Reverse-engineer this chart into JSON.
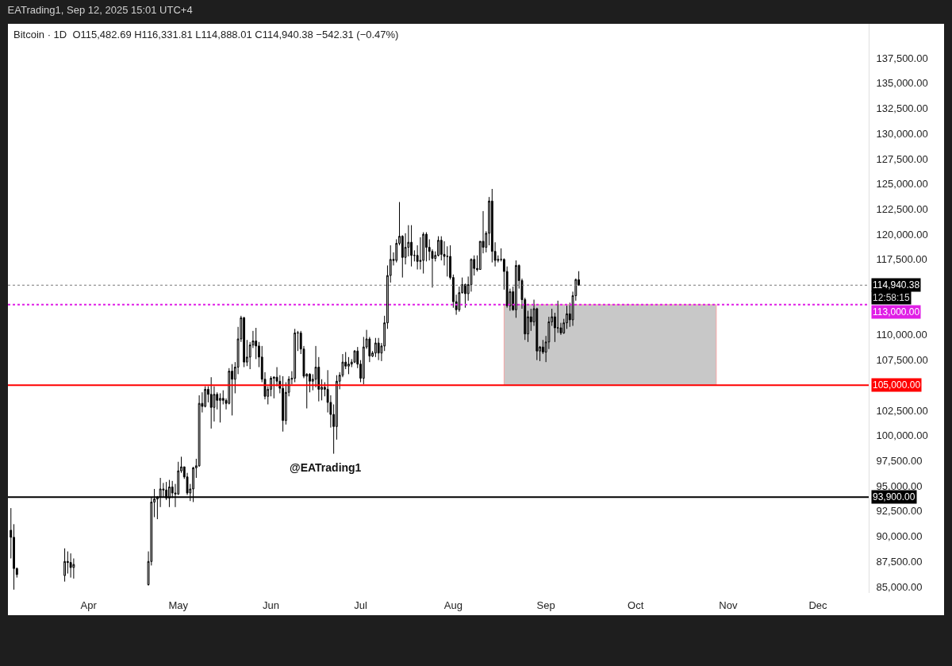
{
  "chart_data": {
    "type": "candlestick",
    "title": "EATrading1, Sep 12, 2025 15:01 UTC+4",
    "subtitle": "Bitcoin · 1D  O115,482.69 H116,331.81 L114,888.01 C114,940.38 −542.31 (−0.47%)",
    "x": [
      "2025-03-06",
      "2025-03-07",
      "2025-03-08",
      "2025-03-24",
      "2025-03-25",
      "2025-03-26",
      "2025-03-27",
      "2025-04-21",
      "2025-04-22",
      "2025-04-23",
      "2025-04-24",
      "2025-04-25",
      "2025-04-26",
      "2025-04-27",
      "2025-04-28",
      "2025-04-29",
      "2025-04-30",
      "2025-05-01",
      "2025-05-02",
      "2025-05-03",
      "2025-05-04",
      "2025-05-05",
      "2025-05-06",
      "2025-05-07",
      "2025-05-08",
      "2025-05-09",
      "2025-05-10",
      "2025-05-11",
      "2025-05-12",
      "2025-05-13",
      "2025-05-14",
      "2025-05-15",
      "2025-05-16",
      "2025-05-17",
      "2025-05-18",
      "2025-05-19",
      "2025-05-20",
      "2025-05-21",
      "2025-05-22",
      "2025-05-23",
      "2025-05-24",
      "2025-05-25",
      "2025-05-26",
      "2025-05-27",
      "2025-05-28",
      "2025-05-29",
      "2025-05-30",
      "2025-05-31",
      "2025-06-01",
      "2025-06-02",
      "2025-06-03",
      "2025-06-04",
      "2025-06-05",
      "2025-06-06",
      "2025-06-07",
      "2025-06-08",
      "2025-06-09",
      "2025-06-10",
      "2025-06-11",
      "2025-06-12",
      "2025-06-13",
      "2025-06-14",
      "2025-06-15",
      "2025-06-16",
      "2025-06-17",
      "2025-06-18",
      "2025-06-19",
      "2025-06-20",
      "2025-06-21",
      "2025-06-22",
      "2025-06-23",
      "2025-06-24",
      "2025-06-25",
      "2025-06-26",
      "2025-06-27",
      "2025-06-28",
      "2025-06-29",
      "2025-06-30",
      "2025-07-01",
      "2025-07-02",
      "2025-07-03",
      "2025-07-04",
      "2025-07-05",
      "2025-07-06",
      "2025-07-07",
      "2025-07-08",
      "2025-07-09",
      "2025-07-10",
      "2025-07-11",
      "2025-07-12",
      "2025-07-13",
      "2025-07-14",
      "2025-07-15",
      "2025-07-16",
      "2025-07-17",
      "2025-07-18",
      "2025-07-19",
      "2025-07-20",
      "2025-07-21",
      "2025-07-22",
      "2025-07-23",
      "2025-07-24",
      "2025-07-25",
      "2025-07-26",
      "2025-07-27",
      "2025-07-28",
      "2025-07-29",
      "2025-07-30",
      "2025-07-31",
      "2025-08-01",
      "2025-08-02",
      "2025-08-03",
      "2025-08-04",
      "2025-08-05",
      "2025-08-06",
      "2025-08-07",
      "2025-08-08",
      "2025-08-09",
      "2025-08-10",
      "2025-08-11",
      "2025-08-12",
      "2025-08-13",
      "2025-08-14",
      "2025-08-15",
      "2025-08-16",
      "2025-08-17",
      "2025-08-18",
      "2025-08-19",
      "2025-08-20",
      "2025-08-21",
      "2025-08-22",
      "2025-08-23",
      "2025-08-24",
      "2025-08-25",
      "2025-08-26",
      "2025-08-27",
      "2025-08-28",
      "2025-08-29",
      "2025-08-30",
      "2025-08-31",
      "2025-09-01",
      "2025-09-02",
      "2025-09-03",
      "2025-09-04",
      "2025-09-05",
      "2025-09-06",
      "2025-09-07",
      "2025-09-08",
      "2025-09-09",
      "2025-09-10",
      "2025-09-11",
      "2025-09-12"
    ],
    "ohlc": [
      [
        90600,
        92800,
        87800,
        89900
      ],
      [
        89900,
        91200,
        84700,
        86800
      ],
      [
        86800,
        86900,
        85900,
        86200
      ],
      [
        86100,
        88800,
        85500,
        87500
      ],
      [
        87500,
        88500,
        86300,
        87400
      ],
      [
        87400,
        88300,
        85900,
        86900
      ],
      [
        86900,
        87800,
        85800,
        87200
      ],
      [
        85200,
        88500,
        85100,
        87500
      ],
      [
        87500,
        93900,
        87100,
        93400
      ],
      [
        93400,
        94700,
        91900,
        93700
      ],
      [
        93700,
        94000,
        91700,
        93900
      ],
      [
        93900,
        95800,
        92900,
        94700
      ],
      [
        94700,
        95300,
        93900,
        94600
      ],
      [
        94600,
        95400,
        93600,
        93800
      ],
      [
        93800,
        95600,
        92900,
        94900
      ],
      [
        94900,
        95500,
        93800,
        94300
      ],
      [
        94300,
        95200,
        92900,
        94200
      ],
      [
        94200,
        97400,
        94100,
        96500
      ],
      [
        96500,
        97900,
        96300,
        96900
      ],
      [
        96900,
        96900,
        95700,
        95900
      ],
      [
        95900,
        96300,
        94100,
        94300
      ],
      [
        94300,
        95200,
        93500,
        94700
      ],
      [
        94700,
        96900,
        93400,
        96800
      ],
      [
        96800,
        97700,
        95800,
        97000
      ],
      [
        97000,
        104000,
        96900,
        103200
      ],
      [
        103200,
        104300,
        102300,
        102900
      ],
      [
        102900,
        104900,
        102800,
        104600
      ],
      [
        104600,
        104900,
        103300,
        104100
      ],
      [
        104100,
        105800,
        100700,
        102800
      ],
      [
        102800,
        104900,
        101400,
        104100
      ],
      [
        104100,
        104300,
        102600,
        103500
      ],
      [
        103500,
        104200,
        101300,
        103700
      ],
      [
        103700,
        104500,
        103100,
        103500
      ],
      [
        103500,
        103700,
        102600,
        103200
      ],
      [
        103200,
        106700,
        103100,
        106400
      ],
      [
        106400,
        107100,
        102000,
        105600
      ],
      [
        105600,
        107300,
        104200,
        106800
      ],
      [
        106800,
        110800,
        106100,
        109600
      ],
      [
        109600,
        111900,
        109300,
        111700
      ],
      [
        111700,
        111800,
        106800,
        107300
      ],
      [
        107300,
        109500,
        106900,
        107800
      ],
      [
        107800,
        109300,
        106600,
        109000
      ],
      [
        109000,
        110400,
        108700,
        109400
      ],
      [
        109400,
        110700,
        107600,
        108900
      ],
      [
        108900,
        109300,
        106800,
        107800
      ],
      [
        107800,
        108900,
        105300,
        105600
      ],
      [
        105600,
        106300,
        103600,
        103900
      ],
      [
        103900,
        104900,
        103100,
        104600
      ],
      [
        104600,
        105900,
        103900,
        105700
      ],
      [
        105700,
        105900,
        103700,
        105800
      ],
      [
        105800,
        106800,
        104900,
        105400
      ],
      [
        105400,
        106000,
        104200,
        104700
      ],
      [
        104700,
        105900,
        100400,
        101500
      ],
      [
        101500,
        105300,
        101100,
        104300
      ],
      [
        104300,
        105900,
        103900,
        105600
      ],
      [
        105600,
        106400,
        105100,
        105700
      ],
      [
        105700,
        110600,
        105300,
        110200
      ],
      [
        110200,
        110400,
        108400,
        110200
      ],
      [
        110200,
        110400,
        108100,
        108600
      ],
      [
        108600,
        108900,
        105700,
        105900
      ],
      [
        105900,
        106200,
        102700,
        106100
      ],
      [
        106100,
        106200,
        104300,
        105400
      ],
      [
        105400,
        106100,
        104500,
        105600
      ],
      [
        105600,
        108900,
        104800,
        106800
      ],
      [
        106800,
        107800,
        103400,
        104600
      ],
      [
        104600,
        105600,
        103500,
        104800
      ],
      [
        104800,
        105300,
        103900,
        104600
      ],
      [
        104600,
        106500,
        102300,
        103300
      ],
      [
        103300,
        104000,
        100800,
        102100
      ],
      [
        102100,
        103100,
        98200,
        100900
      ],
      [
        100900,
        106000,
        99600,
        105400
      ],
      [
        105400,
        106300,
        104600,
        106000
      ],
      [
        106000,
        108100,
        105800,
        107300
      ],
      [
        107300,
        108300,
        106600,
        106900
      ],
      [
        106900,
        107800,
        106100,
        107100
      ],
      [
        107100,
        107600,
        106800,
        107300
      ],
      [
        107300,
        108500,
        107200,
        108400
      ],
      [
        108400,
        108800,
        106700,
        107100
      ],
      [
        107100,
        107500,
        105300,
        105700
      ],
      [
        105700,
        109800,
        105100,
        108800
      ],
      [
        108800,
        110500,
        108600,
        109600
      ],
      [
        109600,
        109800,
        107300,
        107900
      ],
      [
        107900,
        108400,
        107800,
        108200
      ],
      [
        108200,
        109700,
        107800,
        109200
      ],
      [
        109200,
        109700,
        107500,
        108200
      ],
      [
        108200,
        109200,
        107400,
        108900
      ],
      [
        108900,
        111900,
        108400,
        111200
      ],
      [
        111200,
        116900,
        110600,
        115900
      ],
      [
        115900,
        118900,
        115200,
        117500
      ],
      [
        117500,
        118200,
        116900,
        117400
      ],
      [
        117400,
        119500,
        117200,
        119100
      ],
      [
        119100,
        123200,
        118900,
        119800
      ],
      [
        119800,
        119900,
        115700,
        117700
      ],
      [
        117700,
        120100,
        117000,
        118700
      ],
      [
        118700,
        120900,
        117800,
        119200
      ],
      [
        119200,
        120900,
        116800,
        117900
      ],
      [
        117900,
        118400,
        117300,
        117900
      ],
      [
        117900,
        118900,
        116500,
        117300
      ],
      [
        117300,
        119700,
        116500,
        117400
      ],
      [
        117400,
        120200,
        116100,
        120000
      ],
      [
        120000,
        120200,
        117300,
        118700
      ],
      [
        118700,
        119500,
        117400,
        118300
      ],
      [
        118300,
        118500,
        114700,
        117600
      ],
      [
        117600,
        118300,
        117300,
        117900
      ],
      [
        117900,
        119800,
        117800,
        119400
      ],
      [
        119400,
        119800,
        117400,
        118000
      ],
      [
        118000,
        119300,
        116900,
        117800
      ],
      [
        117800,
        118800,
        115800,
        117800
      ],
      [
        117800,
        118900,
        115500,
        115700
      ],
      [
        115700,
        116000,
        112700,
        113300
      ],
      [
        113300,
        114000,
        112000,
        112500
      ],
      [
        112500,
        114800,
        112300,
        114200
      ],
      [
        114200,
        115700,
        114100,
        115000
      ],
      [
        115000,
        115100,
        112700,
        114100
      ],
      [
        114100,
        115800,
        113400,
        115000
      ],
      [
        115000,
        117600,
        114300,
        117500
      ],
      [
        117500,
        117900,
        115900,
        116600
      ],
      [
        116600,
        117900,
        116300,
        116500
      ],
      [
        116500,
        119300,
        116500,
        119300
      ],
      [
        119300,
        122300,
        118100,
        118700
      ],
      [
        118700,
        120300,
        118200,
        120100
      ],
      [
        120100,
        123700,
        118900,
        123300
      ],
      [
        123300,
        124500,
        117200,
        118300
      ],
      [
        118300,
        119200,
        116800,
        117400
      ],
      [
        117400,
        117900,
        117200,
        117500
      ],
      [
        117500,
        118600,
        117300,
        117500
      ],
      [
        117500,
        117600,
        114500,
        116300
      ],
      [
        116300,
        116800,
        112700,
        112900
      ],
      [
        112900,
        114600,
        112400,
        114300
      ],
      [
        114300,
        114800,
        112400,
        112500
      ],
      [
        112500,
        117400,
        111700,
        116900
      ],
      [
        116900,
        117000,
        114600,
        115400
      ],
      [
        115400,
        115600,
        112600,
        113500
      ],
      [
        113500,
        113700,
        109500,
        110100
      ],
      [
        110100,
        112400,
        109300,
        111800
      ],
      [
        111800,
        112600,
        110400,
        111300
      ],
      [
        111300,
        113500,
        110900,
        112600
      ],
      [
        112600,
        112700,
        107500,
        108400
      ],
      [
        108400,
        108900,
        107400,
        108800
      ],
      [
        108800,
        109500,
        108100,
        108300
      ],
      [
        108300,
        109900,
        107300,
        109300
      ],
      [
        109300,
        111800,
        108600,
        111300
      ],
      [
        111300,
        112600,
        110900,
        111800
      ],
      [
        111800,
        112200,
        109300,
        110700
      ],
      [
        110700,
        113400,
        110200,
        110700
      ],
      [
        110700,
        111200,
        110000,
        110200
      ],
      [
        110200,
        111600,
        110100,
        111200
      ],
      [
        111200,
        112900,
        110600,
        112100
      ],
      [
        112100,
        113200,
        110800,
        111500
      ],
      [
        111500,
        114300,
        110900,
        113900
      ],
      [
        113900,
        115600,
        113400,
        115500
      ],
      [
        115482.69,
        116331.81,
        114888.01,
        114940.38
      ]
    ],
    "xlim": [
      "2025-03-05",
      "2025-12-18"
    ],
    "xticks": [
      {
        "value": "2025-04-01",
        "label": "Apr"
      },
      {
        "value": "2025-05-01",
        "label": "May"
      },
      {
        "value": "2025-06-01",
        "label": "Jun"
      },
      {
        "value": "2025-07-01",
        "label": "Jul"
      },
      {
        "value": "2025-08-01",
        "label": "Aug"
      },
      {
        "value": "2025-09-01",
        "label": "Sep"
      },
      {
        "value": "2025-10-01",
        "label": "Oct"
      },
      {
        "value": "2025-11-01",
        "label": "Nov"
      },
      {
        "value": "2025-12-01",
        "label": "Dec"
      }
    ],
    "ylim": [
      84370,
      140900
    ],
    "yticks": [
      {
        "value": 85000,
        "label": "85,000.00"
      },
      {
        "value": 87500,
        "label": "87,500.00"
      },
      {
        "value": 90000,
        "label": "90,000.00"
      },
      {
        "value": 92500,
        "label": "92,500.00"
      },
      {
        "value": 95000,
        "label": "95,000.00"
      },
      {
        "value": 97500,
        "label": "97,500.00"
      },
      {
        "value": 100000,
        "label": "100,000.00"
      },
      {
        "value": 102500,
        "label": "102,500.00"
      },
      {
        "value": 107500,
        "label": "107,500.00"
      },
      {
        "value": 110000,
        "label": "110,000.00"
      },
      {
        "value": 117500,
        "label": "117,500.00"
      },
      {
        "value": 120000,
        "label": "120,000.00"
      },
      {
        "value": 122500,
        "label": "122,500.00"
      },
      {
        "value": 125000,
        "label": "125,000.00"
      },
      {
        "value": 127500,
        "label": "127,500.00"
      },
      {
        "value": 130000,
        "label": "130,000.00"
      },
      {
        "value": 132500,
        "label": "132,500.00"
      },
      {
        "value": 135000,
        "label": "135,000.00"
      },
      {
        "value": 137500,
        "label": "137,500.00"
      }
    ],
    "ref_lines": [
      {
        "axis": "y",
        "value": 114940.38,
        "label": "114,940.38",
        "color": "#787878",
        "line_style": "dotted"
      },
      {
        "axis": "y",
        "value": 113000,
        "label": "113,000.00",
        "color": "#e01ee6",
        "line_style": "dotted"
      },
      {
        "axis": "y",
        "value": 105000,
        "label": "105,000.00",
        "color": "#ff0000",
        "line_style": "solid"
      },
      {
        "axis": "y",
        "value": 93900,
        "label": "93,900.00",
        "color": "#000000",
        "line_style": "solid"
      }
    ],
    "bands": [
      {
        "axis": "x",
        "from": "2025-08-18",
        "to": "2025-10-28",
        "color": "#c8c8c8"
      }
    ],
    "annotations": [
      "@EATrading1",
      "12:58:15"
    ],
    "grid": false
  }
}
